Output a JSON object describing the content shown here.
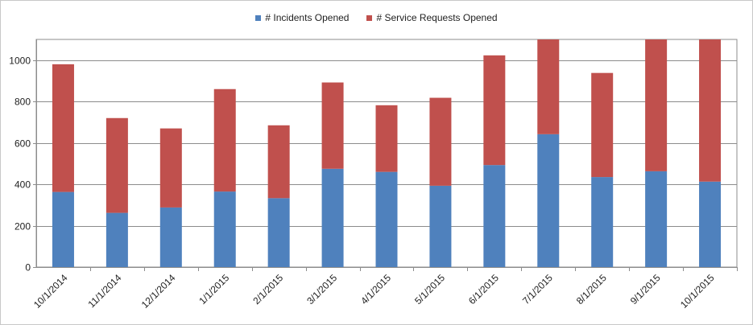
{
  "chart_data": {
    "type": "bar",
    "stacked": true,
    "categories": [
      "10/1/2014",
      "11/1/2014",
      "12/1/2014",
      "1/1/2015",
      "2/1/2015",
      "3/1/2015",
      "4/1/2015",
      "5/1/2015",
      "6/1/2015",
      "7/1/2015",
      "8/1/2015",
      "9/1/2015",
      "10/1/2015"
    ],
    "series": [
      {
        "name": "# Incidents Opened",
        "color": "#4f81bd",
        "values": [
          363,
          262,
          288,
          365,
          333,
          475,
          460,
          393,
          493,
          642,
          435,
          463,
          413
        ]
      },
      {
        "name": "# Service Requests Opened",
        "color": "#c0504d",
        "values": [
          617,
          458,
          382,
          495,
          352,
          417,
          322,
          425,
          530,
          458,
          503,
          637,
          687
        ]
      }
    ],
    "yticks": [
      0,
      200,
      400,
      600,
      800,
      1000
    ],
    "ylim": [
      0,
      1100
    ],
    "grid": true,
    "legend_position": "top-center",
    "xlabel": "",
    "ylabel": "",
    "title": ""
  }
}
